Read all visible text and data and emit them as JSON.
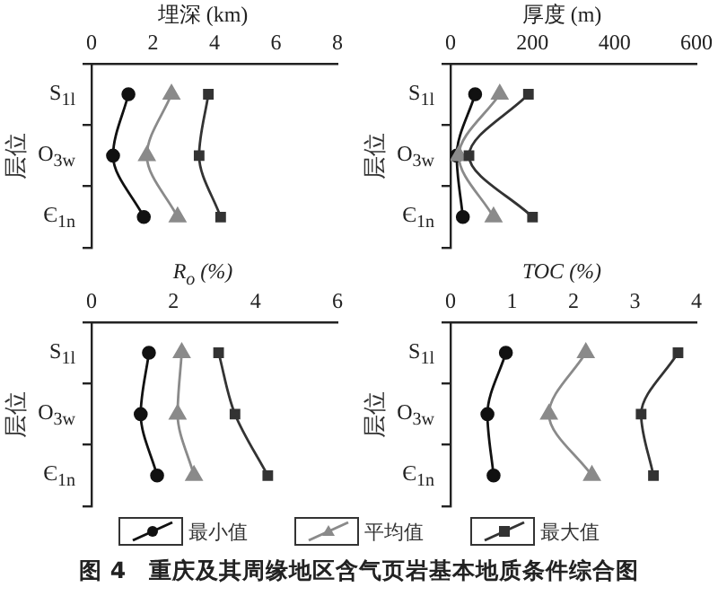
{
  "chart_data": [
    {
      "type": "line",
      "orientation": "horizontal",
      "xlabel": "埋深 (km)",
      "ylabel": "层位",
      "categories": [
        "S$_{1l}$",
        "O$_{3w}$",
        "Є$_{1n}$"
      ],
      "xlim": [
        0,
        8
      ],
      "xticks": [
        0,
        2,
        4,
        6,
        8
      ],
      "series": [
        {
          "color": "#111111",
          "marker": "circle",
          "values": [
            1.2,
            0.7,
            1.7
          ]
        },
        {
          "color": "#8a8a8a",
          "marker": "triangle",
          "values": [
            2.6,
            1.8,
            2.8
          ]
        },
        {
          "color": "#333333",
          "marker": "square",
          "values": [
            3.8,
            3.5,
            4.2
          ]
        }
      ]
    },
    {
      "type": "line",
      "orientation": "horizontal",
      "xlabel": "厚度 (m)",
      "ylabel": "层位",
      "categories": [
        "S$_{1l}$",
        "O$_{3w}$",
        "Є$_{1n}$"
      ],
      "xlim": [
        0,
        600
      ],
      "xticks": [
        0,
        200,
        400,
        600
      ],
      "series": [
        {
          "color": "#111111",
          "marker": "circle",
          "values": [
            60,
            15,
            30
          ]
        },
        {
          "color": "#8a8a8a",
          "marker": "triangle",
          "values": [
            120,
            20,
            105
          ]
        },
        {
          "color": "#333333",
          "marker": "square",
          "values": [
            190,
            45,
            200
          ]
        }
      ]
    },
    {
      "type": "line",
      "orientation": "horizontal",
      "xlabel": "R$_{o}$ (%)",
      "ylabel": "层位",
      "categories": [
        "S$_{1l}$",
        "O$_{3w}$",
        "Є$_{1n}$"
      ],
      "xlim": [
        0,
        6
      ],
      "xticks": [
        0,
        2,
        4,
        6
      ],
      "legend": "bottom",
      "series": [
        {
          "name": "最小值",
          "color": "#111111",
          "marker": "circle",
          "values": [
            1.4,
            1.2,
            1.6
          ]
        },
        {
          "name": "平均值",
          "color": "#8a8a8a",
          "marker": "triangle",
          "values": [
            2.2,
            2.1,
            2.5
          ]
        },
        {
          "name": "最大值",
          "color": "#333333",
          "marker": "square",
          "values": [
            3.1,
            3.5,
            4.3
          ]
        }
      ]
    },
    {
      "type": "line",
      "orientation": "horizontal",
      "xlabel": "TOC (%)",
      "ylabel": "层位",
      "categories": [
        "S$_{1l}$",
        "O$_{3w}$",
        "Є$_{1n}$"
      ],
      "xlim": [
        0,
        4
      ],
      "xticks": [
        0,
        1,
        2,
        3,
        4
      ],
      "annotations": [
        "图 4　重庆及其周缘地区含气页岩基本地质条件综合图"
      ],
      "series": [
        {
          "color": "#111111",
          "marker": "circle",
          "values": [
            0.9,
            0.6,
            0.7
          ]
        },
        {
          "color": "#8a8a8a",
          "marker": "triangle",
          "values": [
            2.2,
            1.6,
            2.3
          ]
        },
        {
          "color": "#333333",
          "marker": "square",
          "values": [
            3.7,
            3.1,
            3.3
          ]
        }
      ]
    }
  ]
}
